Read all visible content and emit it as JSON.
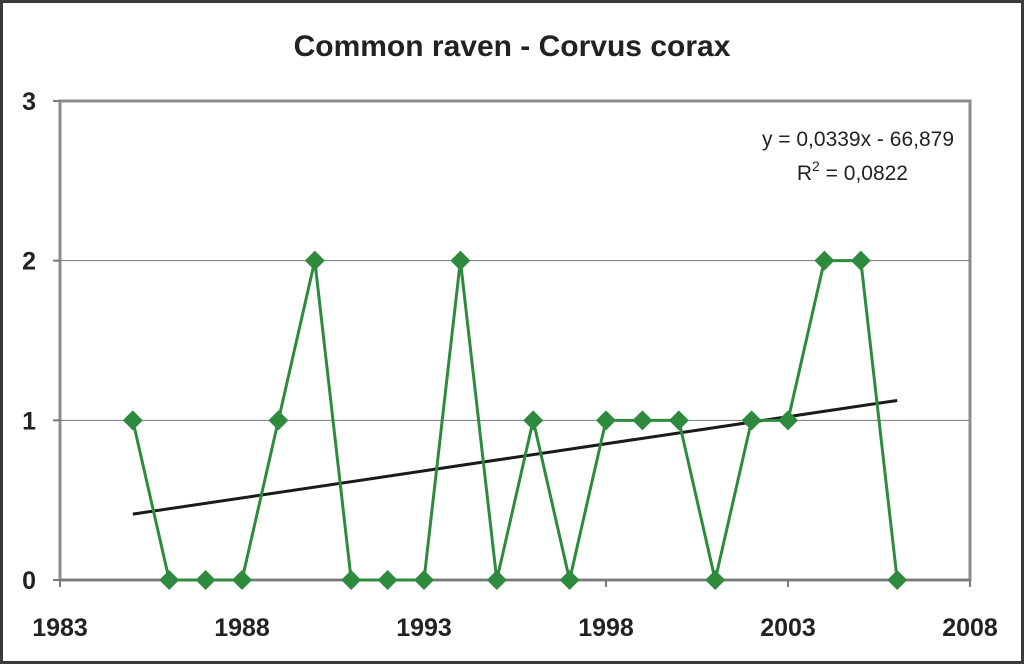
{
  "chart_data": {
    "type": "line",
    "title": "Common raven - Corvus corax",
    "xlabel": "",
    "ylabel": "",
    "xlim": [
      1983,
      2008
    ],
    "ylim": [
      0,
      3
    ],
    "x_ticks": [
      1983,
      1988,
      1993,
      1998,
      2003,
      2008
    ],
    "y_ticks": [
      0,
      1,
      2,
      3
    ],
    "x_tick_labels": [
      "1983",
      "1988",
      "1993",
      "1998",
      "2003",
      "2008"
    ],
    "y_tick_labels": [
      "0",
      "1",
      "2",
      "3"
    ],
    "grid": "horizontal",
    "series": [
      {
        "x": [
          1985,
          1986,
          1987,
          1988,
          1989,
          1990,
          1991,
          1992,
          1993,
          1994,
          1995,
          1996,
          1997,
          1998,
          1999,
          2000,
          2001,
          2002,
          2003,
          2004,
          2005,
          2006
        ],
        "values": [
          1,
          0,
          0,
          0,
          1,
          2,
          0,
          0,
          0,
          2,
          0,
          1,
          0,
          1,
          1,
          1,
          0,
          1,
          1,
          2,
          2,
          0
        ],
        "marker": "diamond",
        "color": "#2e8b3e"
      }
    ],
    "trendline": {
      "type": "linear",
      "slope": 0.0339,
      "intercept": -66.879,
      "equation": "y = 0,0339x - 66,879",
      "r2_prefix": "R",
      "r2_exponent": "2",
      "r2_value": " = 0,0822",
      "color": "#1a1a1a"
    },
    "equation_placement": "top-right"
  }
}
